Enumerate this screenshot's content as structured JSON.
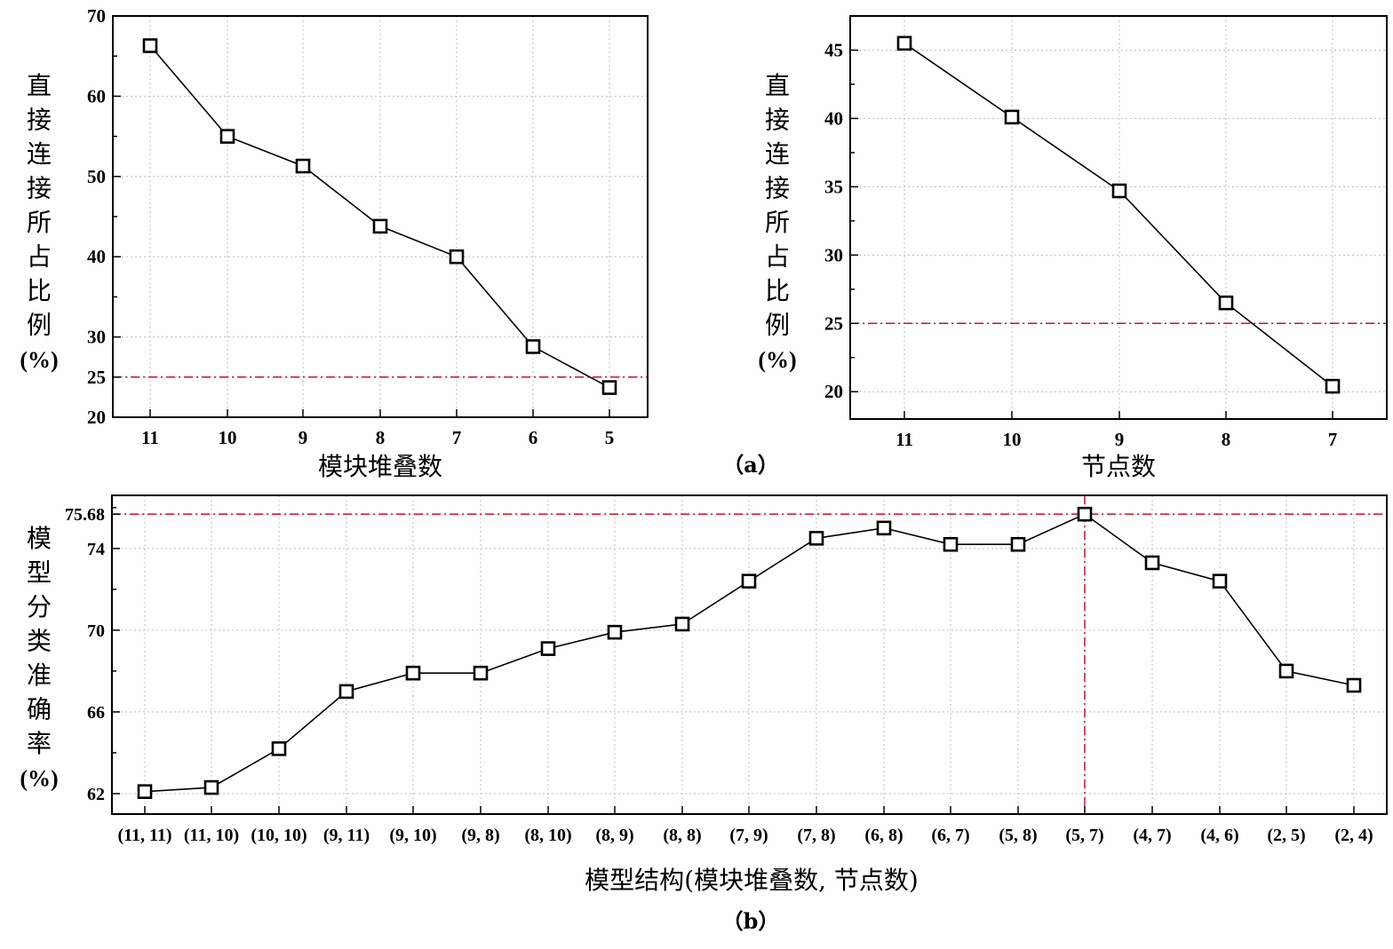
{
  "chart_data": [
    {
      "type": "line",
      "panel": "a-left",
      "categories": [
        "11",
        "10",
        "9",
        "8",
        "7",
        "6",
        "5"
      ],
      "series": [
        {
          "values": [
            66.3,
            55.0,
            51.3,
            43.8,
            40.0,
            28.8,
            23.7
          ]
        }
      ],
      "xlabel": "模块堆叠数",
      "ylabel_chars": [
        "直",
        "接",
        "连",
        "接",
        "所",
        "占",
        "比",
        "例"
      ],
      "ylabel_unit": "(%)",
      "yticks": [
        "70",
        "60",
        "50",
        "40",
        "30",
        "25",
        "20"
      ],
      "ylim": [
        20,
        70
      ],
      "ref_y": 25,
      "grid": true
    },
    {
      "type": "line",
      "panel": "a-right",
      "categories": [
        "11",
        "10",
        "9",
        "8",
        "7"
      ],
      "series": [
        {
          "values": [
            45.5,
            40.1,
            34.7,
            26.5,
            20.4
          ]
        }
      ],
      "xlabel": "节点数",
      "ylabel_chars": [
        "直",
        "接",
        "连",
        "接",
        "所",
        "占",
        "比",
        "例"
      ],
      "ylabel_unit": "(%)",
      "yticks": [
        "45",
        "40",
        "35",
        "30",
        "25",
        "20"
      ],
      "ylim": [
        18,
        47.5
      ],
      "ref_y": 25,
      "grid": true
    },
    {
      "type": "line",
      "panel": "b",
      "categories": [
        "(11, 11)",
        "(11, 10)",
        "(10, 10)",
        "(9, 11)",
        "(9, 10)",
        "(9, 8)",
        "(8, 10)",
        "(8, 9)",
        "(8, 8)",
        "(7, 9)",
        "(7, 8)",
        "(6, 8)",
        "(6, 7)",
        "(5, 8)",
        "(5, 7)",
        "(4, 7)",
        "(4, 6)",
        "(2, 5)",
        "(2, 4)"
      ],
      "series": [
        {
          "values": [
            62.1,
            62.3,
            64.2,
            67.0,
            67.9,
            67.9,
            69.1,
            69.9,
            70.3,
            72.4,
            74.5,
            75.0,
            74.2,
            74.2,
            75.68,
            73.3,
            72.4,
            68.0,
            67.3
          ]
        }
      ],
      "xlabel": "模型结构(模块堆叠数, 节点数)",
      "ylabel_chars": [
        "模",
        "型",
        "分",
        "类",
        "准",
        "确",
        "率"
      ],
      "ylabel_unit": "(%)",
      "yticks": [
        "75.68",
        "74",
        "70",
        "66",
        "62"
      ],
      "ylim": [
        61,
        76.6
      ],
      "ref_y": 75.68,
      "ref_x": "(5, 7)",
      "grid": true
    }
  ],
  "labels": {
    "panel_a": "（a）",
    "panel_b": "（b）"
  },
  "colors": {
    "reference_line": "#c8102e",
    "grid": "#bdbdbd"
  }
}
